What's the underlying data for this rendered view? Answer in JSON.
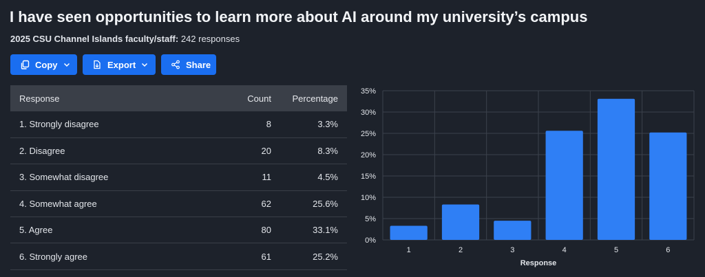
{
  "header": {
    "title": "I have seen opportunities to learn more about AI around my university’s campus",
    "subtitle_label": "2025 CSU Channel Islands faculty/staff:",
    "subtitle_value": "242 responses"
  },
  "toolbar": {
    "copy_label": "Copy",
    "export_label": "Export",
    "share_label": "Share"
  },
  "table": {
    "headers": [
      "Response",
      "Count",
      "Percentage"
    ],
    "rows": [
      {
        "response": "1. Strongly disagree",
        "count": "8",
        "percentage": "3.3%"
      },
      {
        "response": "2. Disagree",
        "count": "20",
        "percentage": "8.3%"
      },
      {
        "response": "3. Somewhat disagree",
        "count": "11",
        "percentage": "4.5%"
      },
      {
        "response": "4. Somewhat agree",
        "count": "62",
        "percentage": "25.6%"
      },
      {
        "response": "5. Agree",
        "count": "80",
        "percentage": "33.1%"
      },
      {
        "response": "6. Strongly agree",
        "count": "61",
        "percentage": "25.2%"
      }
    ]
  },
  "colors": {
    "bar": "#2f7ff5",
    "background": "#1d222b",
    "button": "#1a6ef0"
  },
  "chart_data": {
    "type": "bar",
    "categories": [
      "1",
      "2",
      "3",
      "4",
      "5",
      "6"
    ],
    "values": [
      3.3,
      8.3,
      4.5,
      25.6,
      33.1,
      25.2
    ],
    "xlabel": "Response",
    "ylabel": "",
    "ylim": [
      0,
      35
    ],
    "yticks": [
      "0%",
      "5%",
      "10%",
      "15%",
      "20%",
      "25%",
      "30%",
      "35%"
    ],
    "grid": true
  }
}
